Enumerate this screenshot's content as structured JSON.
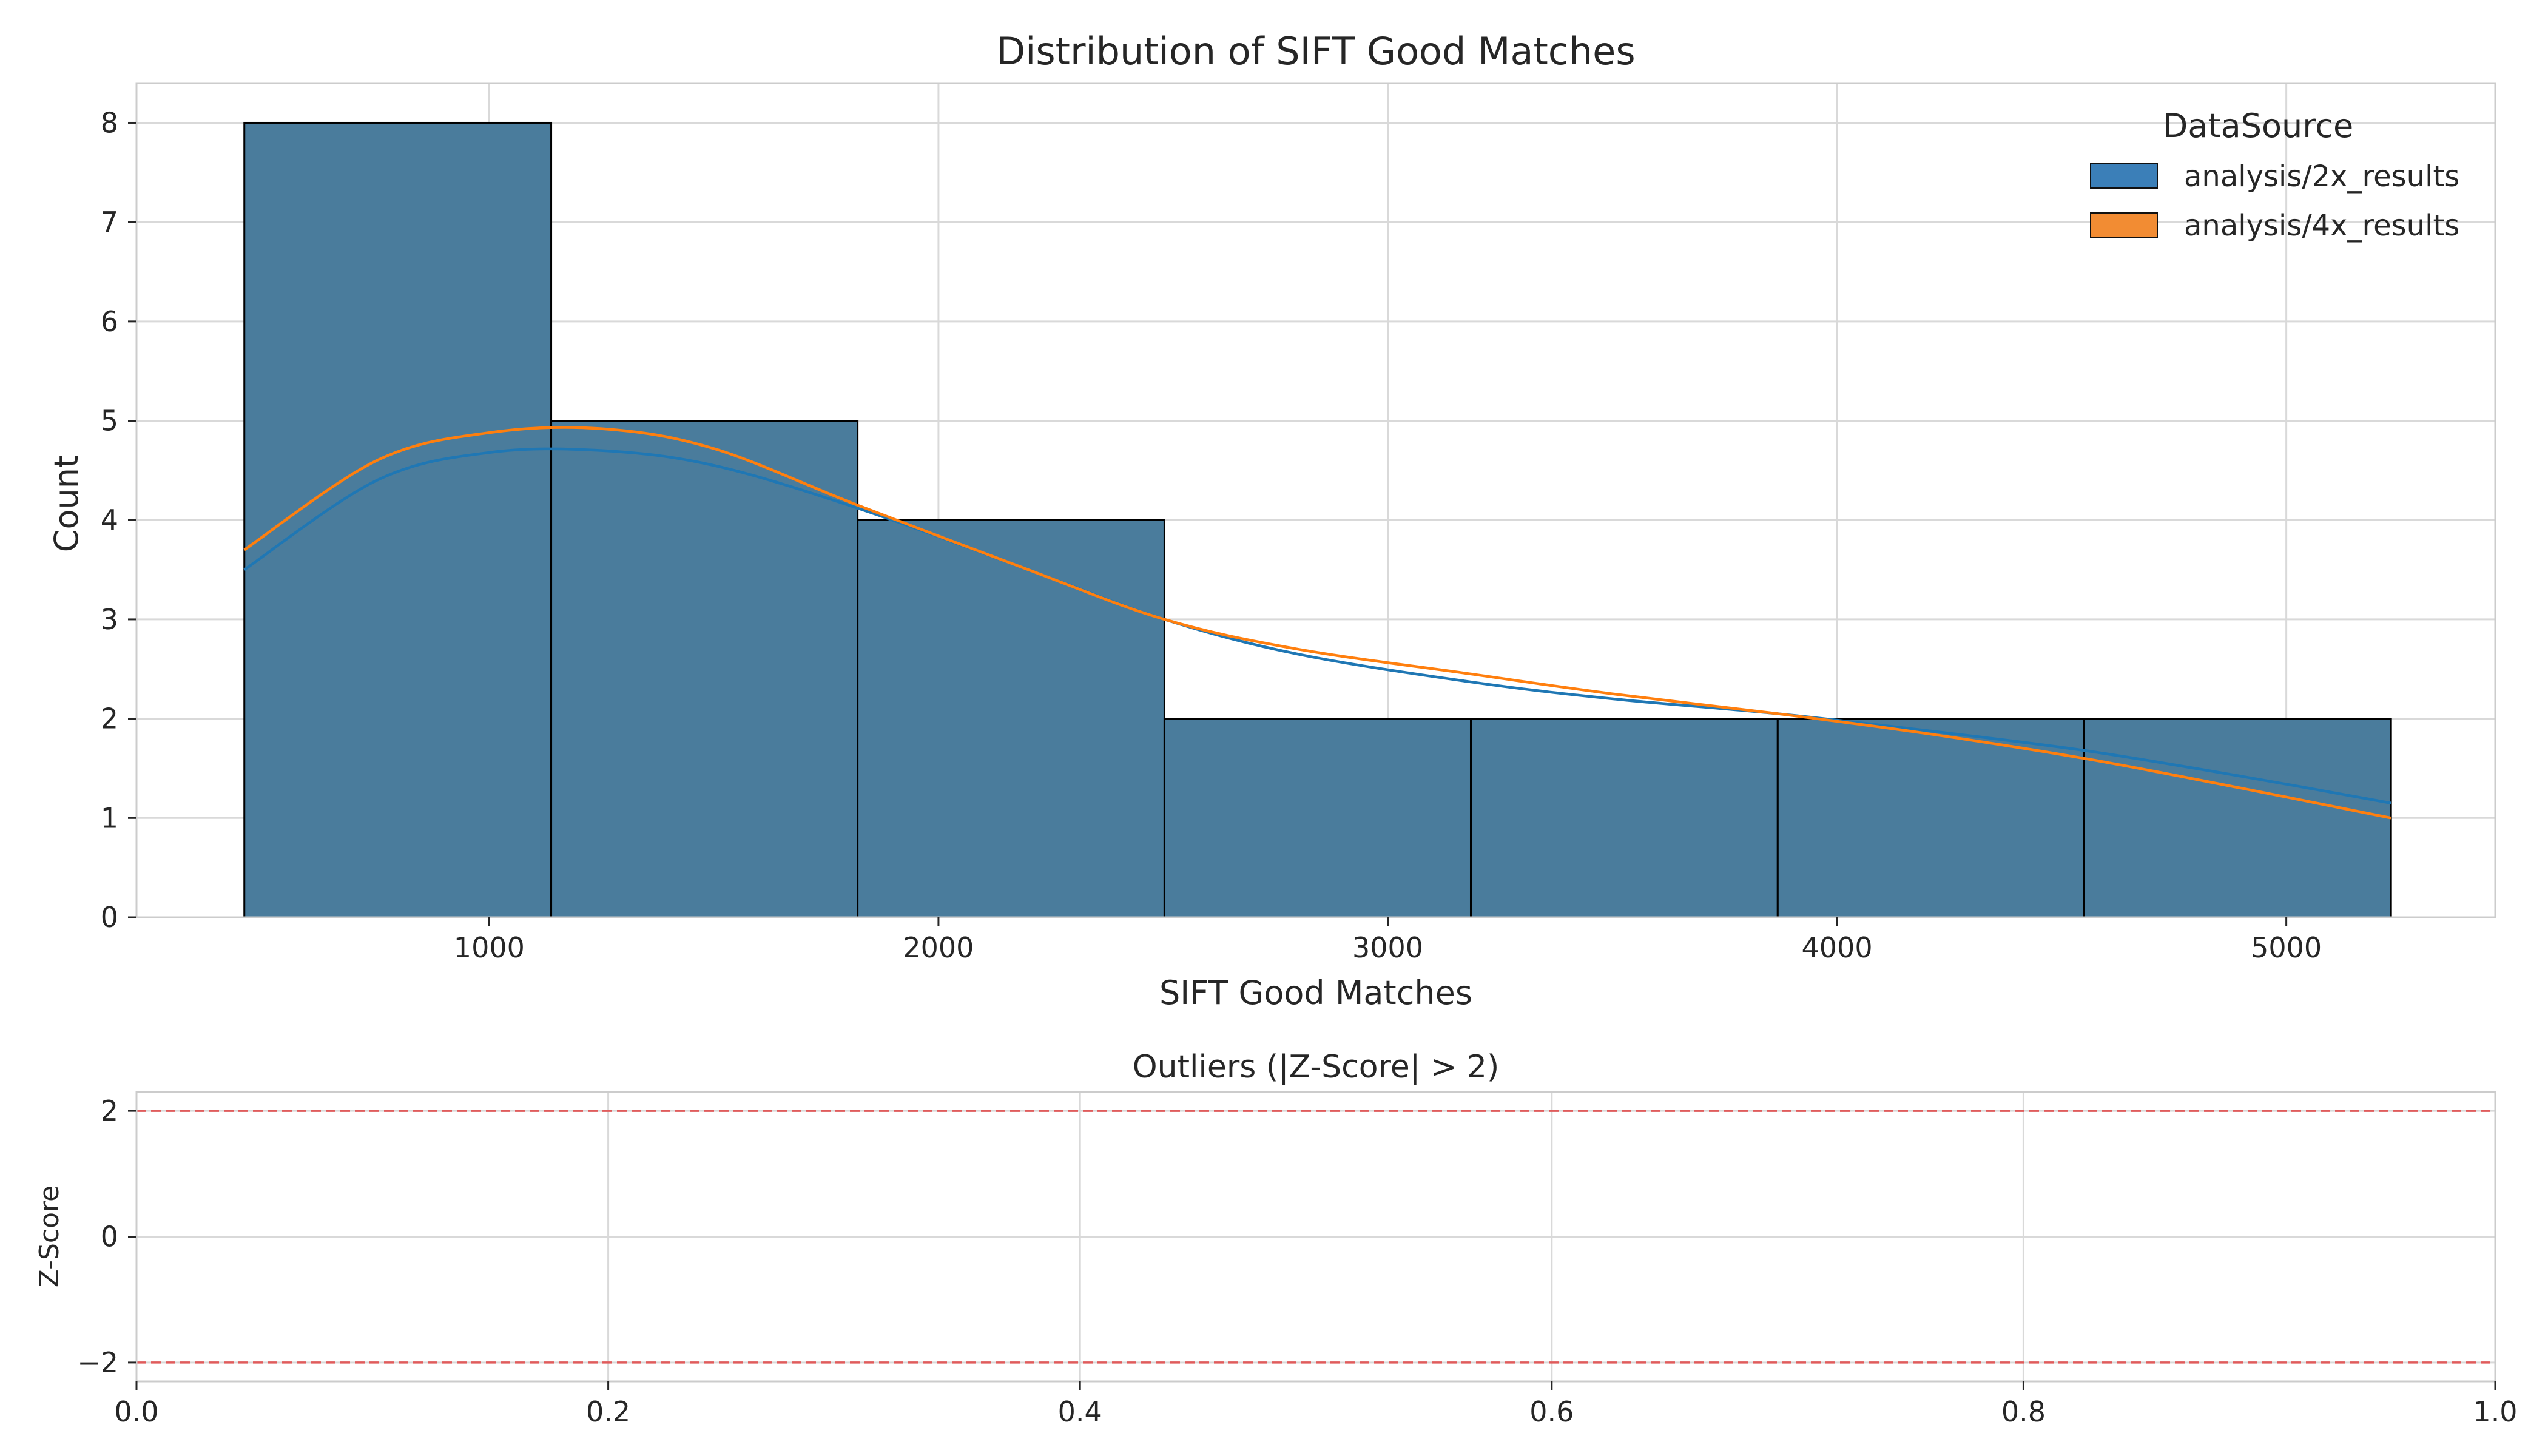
{
  "chart_data": [
    {
      "type": "bar",
      "subtype": "histogram-with-kde",
      "title": "Distribution of SIFT Good Matches",
      "xlabel": "SIFT Good Matches",
      "ylabel": "Count",
      "xlim": [
        215,
        5465
      ],
      "ylim": [
        0,
        8.4
      ],
      "xticks": [
        1000,
        2000,
        3000,
        4000,
        5000
      ],
      "yticks": [
        0,
        1,
        2,
        3,
        4,
        5,
        6,
        7,
        8
      ],
      "grid": true,
      "bins": [
        {
          "x0": 455,
          "x1": 1138,
          "count": 8
        },
        {
          "x0": 1138,
          "x1": 1820,
          "count": 5
        },
        {
          "x0": 1820,
          "x1": 2503,
          "count": 4
        },
        {
          "x0": 2503,
          "x1": 3185,
          "count": 2
        },
        {
          "x0": 3185,
          "x1": 3868,
          "count": 2
        },
        {
          "x0": 3868,
          "x1": 4550,
          "count": 2
        },
        {
          "x0": 4550,
          "x1": 5233,
          "count": 2
        }
      ],
      "bar_color": "#4a7c9c",
      "legend": {
        "title": "DataSource",
        "position": "top-right",
        "entries": [
          {
            "name": "analysis/2x_results",
            "color": "#3b7fb8"
          },
          {
            "name": "analysis/4x_results",
            "color": "#f28c33"
          }
        ]
      },
      "series": [
        {
          "name": "analysis/2x_results",
          "type": "line",
          "color": "#1f77b4",
          "x": [
            455,
            750,
            1000,
            1250,
            1500,
            1820,
            2200,
            2503,
            2800,
            3185,
            3500,
            3868,
            4200,
            4550,
            4900,
            5233
          ],
          "values": [
            3.5,
            4.4,
            4.68,
            4.7,
            4.55,
            4.12,
            3.5,
            3.0,
            2.65,
            2.37,
            2.2,
            2.05,
            1.88,
            1.68,
            1.42,
            1.15
          ]
        },
        {
          "name": "analysis/4x_results",
          "type": "line",
          "color": "#ff7f0e",
          "x": [
            455,
            750,
            1000,
            1250,
            1500,
            1820,
            2200,
            2503,
            2800,
            3185,
            3500,
            3868,
            4200,
            4550,
            4900,
            5233
          ],
          "values": [
            3.7,
            4.6,
            4.88,
            4.92,
            4.72,
            4.15,
            3.5,
            3.0,
            2.7,
            2.45,
            2.25,
            2.05,
            1.85,
            1.6,
            1.3,
            1.0
          ]
        }
      ]
    },
    {
      "type": "line",
      "title": "Outliers (|Z-Score| > 2)",
      "xlabel": "",
      "ylabel": "Z-Score",
      "xlim": [
        0.0,
        1.0
      ],
      "ylim": [
        -2.3,
        2.3
      ],
      "xticks": [
        0.0,
        0.2,
        0.4,
        0.6,
        0.8,
        1.0
      ],
      "xtick_labels": [
        "0.0",
        "0.2",
        "0.4",
        "0.6",
        "0.8",
        "1.0"
      ],
      "yticks": [
        -2,
        0,
        2
      ],
      "ytick_labels": [
        "−2",
        "0",
        "2"
      ],
      "grid": true,
      "thresholds": [
        {
          "value": 2,
          "color": "#e05c5c",
          "style": "dashed"
        },
        {
          "value": -2,
          "color": "#e05c5c",
          "style": "dashed"
        }
      ],
      "series": []
    }
  ]
}
